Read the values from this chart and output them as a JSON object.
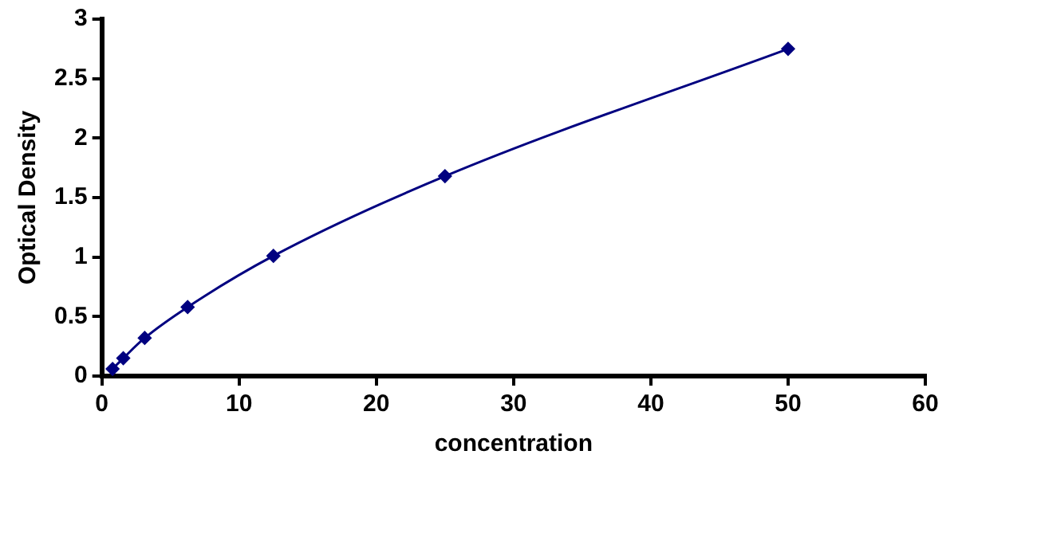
{
  "chart_data": {
    "type": "line",
    "xlabel": "concentration",
    "ylabel": "Optical Density",
    "x": [
      0.78,
      1.56,
      3.12,
      6.25,
      12.5,
      25,
      50
    ],
    "series": [
      {
        "color": "#000080",
        "values": [
          0.06,
          0.15,
          0.32,
          0.58,
          1.01,
          1.68,
          2.75
        ]
      }
    ],
    "xlim": [
      0,
      60
    ],
    "xticks": [
      0,
      10,
      20,
      30,
      40,
      50,
      60
    ],
    "ylim": [
      0,
      3
    ],
    "yticks": [
      0,
      0.5,
      1,
      1.5,
      2,
      2.5,
      3
    ],
    "grid": false,
    "legend": false,
    "marker": "diamond",
    "line_style": "solid"
  }
}
